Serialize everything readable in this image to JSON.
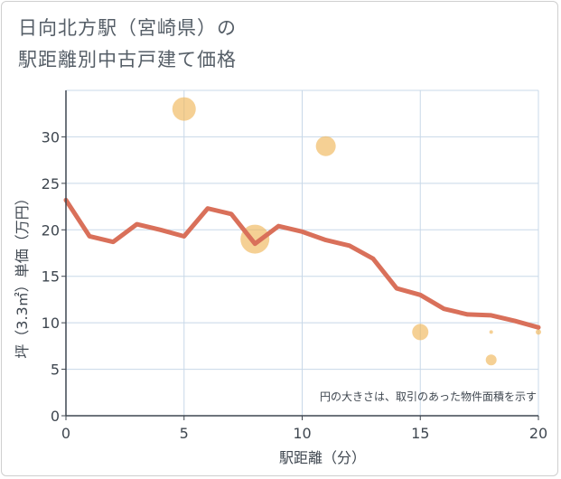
{
  "title_line1": "日向北方駅（宮崎県）の",
  "title_line2": "駅距離別中古戸建て価格",
  "chart_data": {
    "type": "scatter",
    "title": "日向北方駅（宮崎県）の駅距離別中古戸建て価格",
    "xlabel": "駅距離（分）",
    "ylabel": "坪（3.3㎡）単価（万円）",
    "xlim": [
      0,
      20
    ],
    "ylim": [
      0,
      35
    ],
    "xticks": [
      0,
      5,
      10,
      15,
      20
    ],
    "yticks": [
      0,
      5,
      10,
      15,
      20,
      25,
      30
    ],
    "grid": true,
    "annotation": "円の大きさは、取引のあった物件面積を示す",
    "colors": {
      "bubble": "#f0b75a",
      "line": "#d9705a",
      "grid": "#c8d8e8",
      "axis": "#3f4750"
    },
    "scatter_points": [
      {
        "x": 5,
        "y": 33,
        "size": 13
      },
      {
        "x": 11,
        "y": 29,
        "size": 11
      },
      {
        "x": 8,
        "y": 19,
        "size": 16
      },
      {
        "x": 15,
        "y": 9,
        "size": 9
      },
      {
        "x": 18,
        "y": 9,
        "size": 2
      },
      {
        "x": 18,
        "y": 6,
        "size": 6
      },
      {
        "x": 20,
        "y": 9,
        "size": 3
      }
    ],
    "trend_line": {
      "x": [
        0,
        1,
        2,
        3,
        4,
        5,
        6,
        7,
        8,
        9,
        10,
        11,
        12,
        13,
        14,
        15,
        16,
        17,
        18,
        19,
        20
      ],
      "y": [
        23.2,
        19.3,
        18.7,
        20.6,
        20.0,
        19.3,
        22.3,
        21.7,
        18.5,
        20.4,
        19.8,
        18.9,
        18.3,
        16.9,
        13.7,
        13.0,
        11.5,
        10.9,
        10.8,
        10.2,
        9.5
      ]
    }
  }
}
